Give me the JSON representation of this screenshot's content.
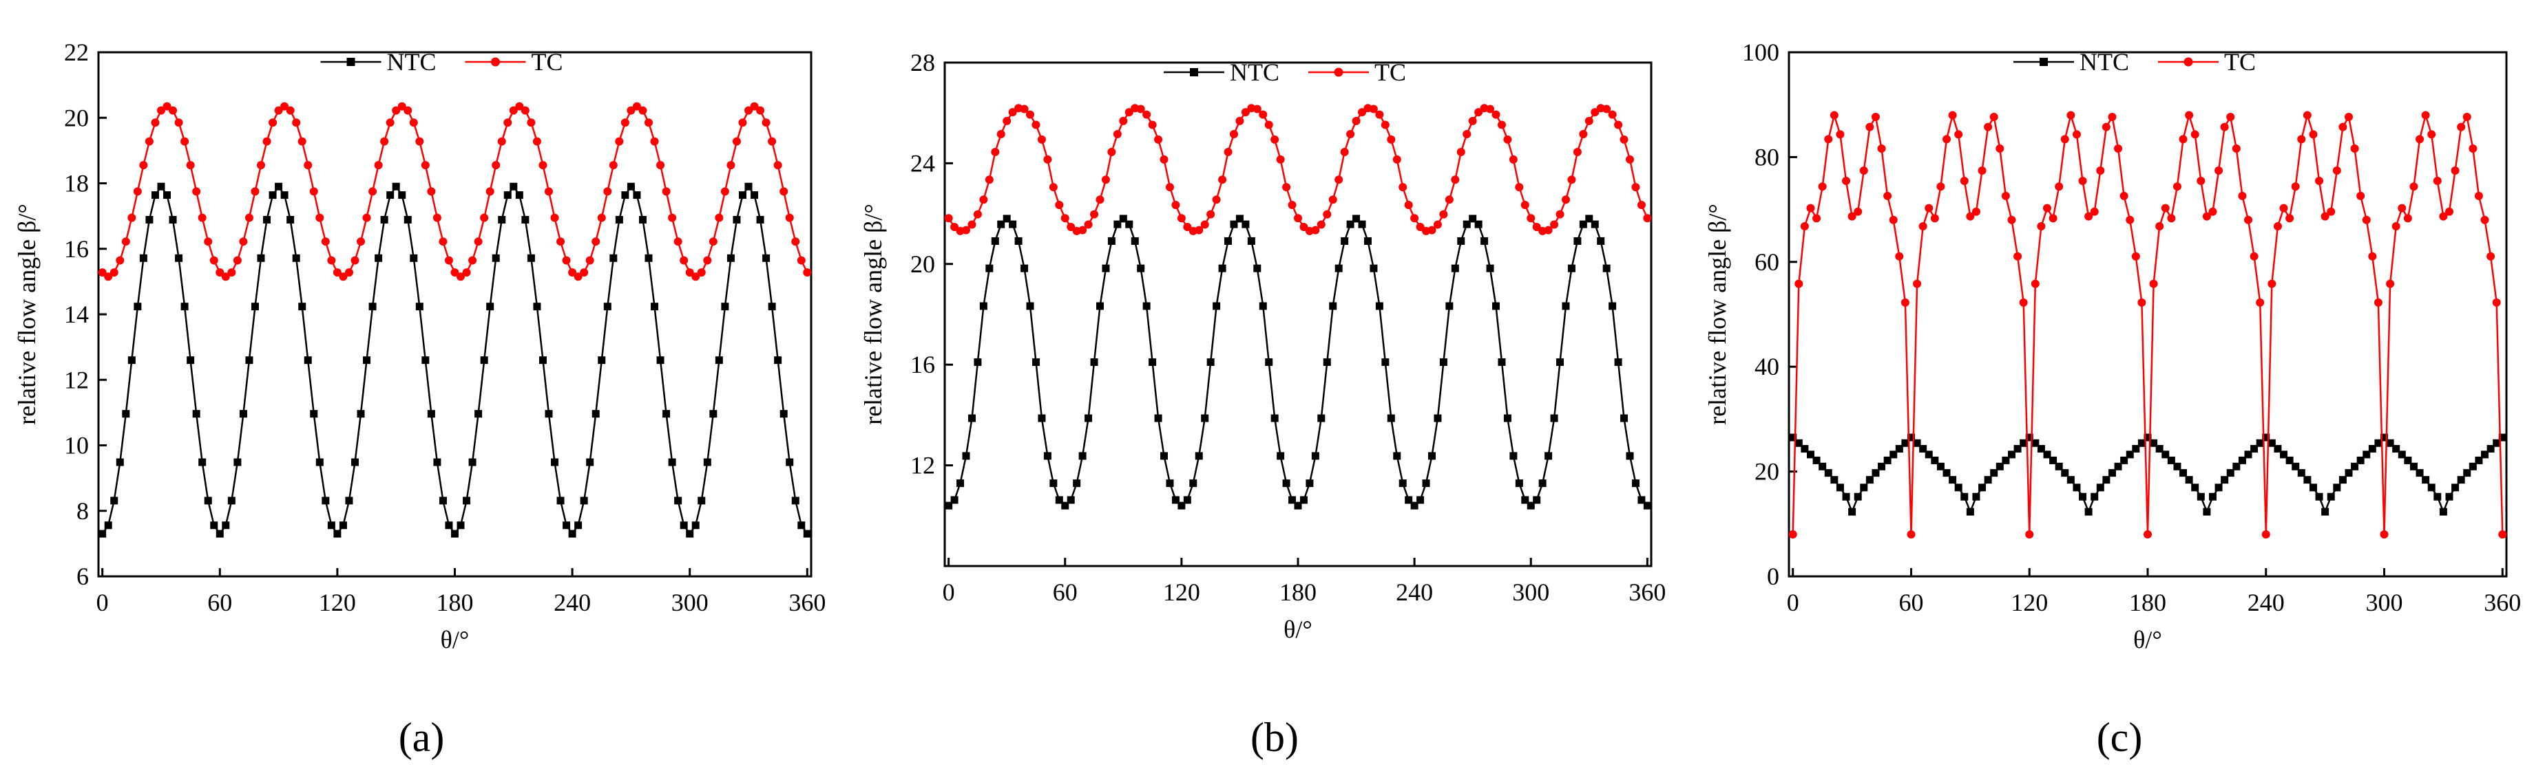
{
  "figure": {
    "panels": [
      {
        "panel_label": "(a)",
        "chart_data": {
          "type": "line",
          "xlabel": "θ/°",
          "ylabel": "relative flow angle β/°",
          "xlim": [
            -2,
            362
          ],
          "ylim": [
            6,
            22
          ],
          "xticks": [
            0,
            60,
            120,
            180,
            240,
            300,
            360
          ],
          "yticks": [
            6,
            8,
            10,
            12,
            14,
            16,
            18,
            20,
            22
          ],
          "xtick_labels": [
            "0",
            "60",
            "120",
            "180",
            "240",
            "300",
            "360"
          ],
          "ytick_labels": [
            "6",
            "8",
            "10",
            "12",
            "14",
            "16",
            "18",
            "20",
            "22"
          ],
          "legend": {
            "position": "top-center",
            "entries": [
              "NTC",
              "TC"
            ]
          },
          "series": [
            {
              "name": "NTC",
              "color": "#000000",
              "marker": "square",
              "model": {
                "kind": "cosine",
                "period": 60,
                "center": 12.6,
                "amplitude": 5.3,
                "phase": 30,
                "sharpness": 1,
                "step": 3,
                "range": [
                  0,
                  360
                ]
              }
            },
            {
              "name": "TC",
              "color": "#ff0000",
              "marker": "circle",
              "model": {
                "kind": "cosine",
                "period": 60,
                "center": 17.75,
                "amplitude": 2.6,
                "phase": 33,
                "sharpness": 1,
                "step": 3,
                "range": [
                  0,
                  360
                ]
              }
            }
          ]
        }
      },
      {
        "panel_label": "(b)",
        "chart_data": {
          "type": "line",
          "xlabel": "θ/°",
          "ylabel": "relative flow angle β/°",
          "xlim": [
            -2,
            362
          ],
          "ylim": [
            8,
            28
          ],
          "xticks": [
            0,
            60,
            120,
            180,
            240,
            300,
            360
          ],
          "yticks": [
            12,
            16,
            20,
            24,
            28
          ],
          "xtick_labels": [
            "0",
            "60",
            "120",
            "180",
            "240",
            "300",
            "360"
          ],
          "ytick_labels": [
            "12",
            "16",
            "20",
            "24",
            "28"
          ],
          "legend": {
            "position": "top-center",
            "entries": [
              "NTC",
              "TC"
            ]
          },
          "series": [
            {
              "name": "NTC",
              "color": "#000000",
              "marker": "square",
              "model": {
                "kind": "cosine",
                "period": 60,
                "center": 16.1,
                "amplitude": 5.7,
                "phase": 30,
                "sharpness": 0.8,
                "step": 3,
                "range": [
                  0,
                  360
                ]
              }
            },
            {
              "name": "TC",
              "color": "#ff0000",
              "marker": "circle",
              "model": {
                "kind": "cosine",
                "period": 60,
                "center": 23.75,
                "amplitude": 2.45,
                "phase": 37,
                "sharpness": 0.8,
                "step": 3,
                "range": [
                  0,
                  360
                ]
              }
            }
          ]
        }
      },
      {
        "panel_label": "(c)",
        "chart_data": {
          "type": "line",
          "xlabel": "θ/°",
          "ylabel": "relative flow angle β/°",
          "xlim": [
            -2,
            362
          ],
          "ylim": [
            0,
            100
          ],
          "xticks": [
            0,
            60,
            120,
            180,
            240,
            300,
            360
          ],
          "yticks": [
            0,
            20,
            40,
            60,
            80,
            100
          ],
          "xtick_labels": [
            "0",
            "60",
            "120",
            "180",
            "240",
            "300",
            "360"
          ],
          "ytick_labels": [
            "0",
            "20",
            "40",
            "60",
            "80",
            "100"
          ],
          "legend": {
            "position": "top-center",
            "entries": [
              "NTC",
              "TC"
            ]
          },
          "series": [
            {
              "name": "NTC",
              "color": "#000000",
              "marker": "square",
              "model": {
                "kind": "arch",
                "period": 60,
                "center": 26.5,
                "amplitude": 15,
                "phase": 30,
                "sharpness": 0.3,
                "step": 3,
                "range": [
                  0,
                  360
                ]
              }
            },
            {
              "name": "TC",
              "color": "#ff0000",
              "marker": "circle",
              "model": {
                "kind": "spike",
                "period": 60,
                "center": 78,
                "amplitude": 10,
                "phase": 0,
                "sharpness": 0.25,
                "step": 3,
                "range": [
                  0,
                  360
                ],
                "dip": 8
              }
            }
          ]
        }
      }
    ]
  }
}
